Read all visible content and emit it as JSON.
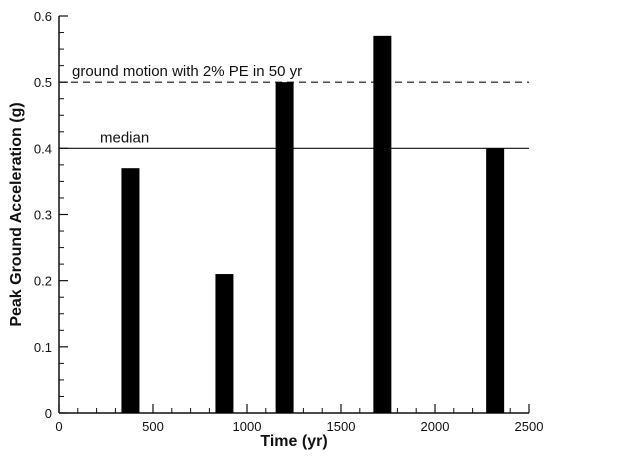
{
  "chart_data": {
    "type": "bar",
    "title": "",
    "xlabel": "Time (yr)",
    "ylabel": "Peak Ground Acceleration (g)",
    "xlim": [
      0,
      2500
    ],
    "ylim": [
      0,
      0.6
    ],
    "xticks": [
      0,
      500,
      1000,
      1500,
      2000,
      2500
    ],
    "yticks": [
      0,
      0.1,
      0.2,
      0.3,
      0.4,
      0.5,
      0.6
    ],
    "xtick_labels": [
      "0",
      "500",
      "1000",
      "1500",
      "2000",
      "2500"
    ],
    "ytick_labels": [
      "0",
      "0.1",
      "0.2",
      "0.3",
      "0.4",
      "0.5",
      "0.6"
    ],
    "x": [
      380,
      880,
      1200,
      1720,
      2320
    ],
    "values": [
      0.37,
      0.21,
      0.5,
      0.57,
      0.4
    ],
    "bar_color": "#000000",
    "grid": false,
    "reference_lines": [
      {
        "label": "ground motion with 2% PE in 50 yr",
        "y": 0.5,
        "style": "dashed"
      },
      {
        "label": "median",
        "y": 0.4,
        "style": "solid"
      }
    ]
  }
}
